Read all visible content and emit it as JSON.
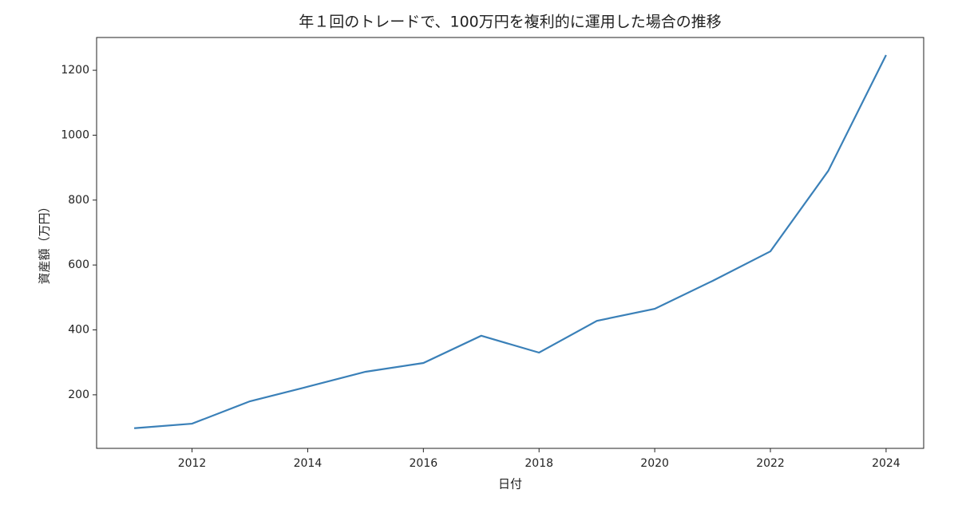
{
  "chart_data": {
    "type": "line",
    "title": "年１回のトレードで、100万円を複利的に運用した場合の推移",
    "x_label": "日付",
    "y_label": "資産額（万円）",
    "x": [
      2011,
      2012,
      2013,
      2014,
      2015,
      2016,
      2017,
      2018,
      2019,
      2020,
      2021,
      2022,
      2023,
      2024
    ],
    "values": [
      97,
      111,
      180,
      225,
      271,
      298,
      382,
      330,
      428,
      465,
      551,
      642,
      890,
      1247
    ],
    "color": "#3a80b8",
    "xlim": [
      2010.35,
      2024.65
    ],
    "xticks": [
      2012,
      2014,
      2016,
      2018,
      2020,
      2022,
      2024
    ],
    "ylim": [
      35,
      1301
    ],
    "yticks": [
      200,
      400,
      600,
      800,
      1000,
      1200
    ],
    "grid": false
  }
}
